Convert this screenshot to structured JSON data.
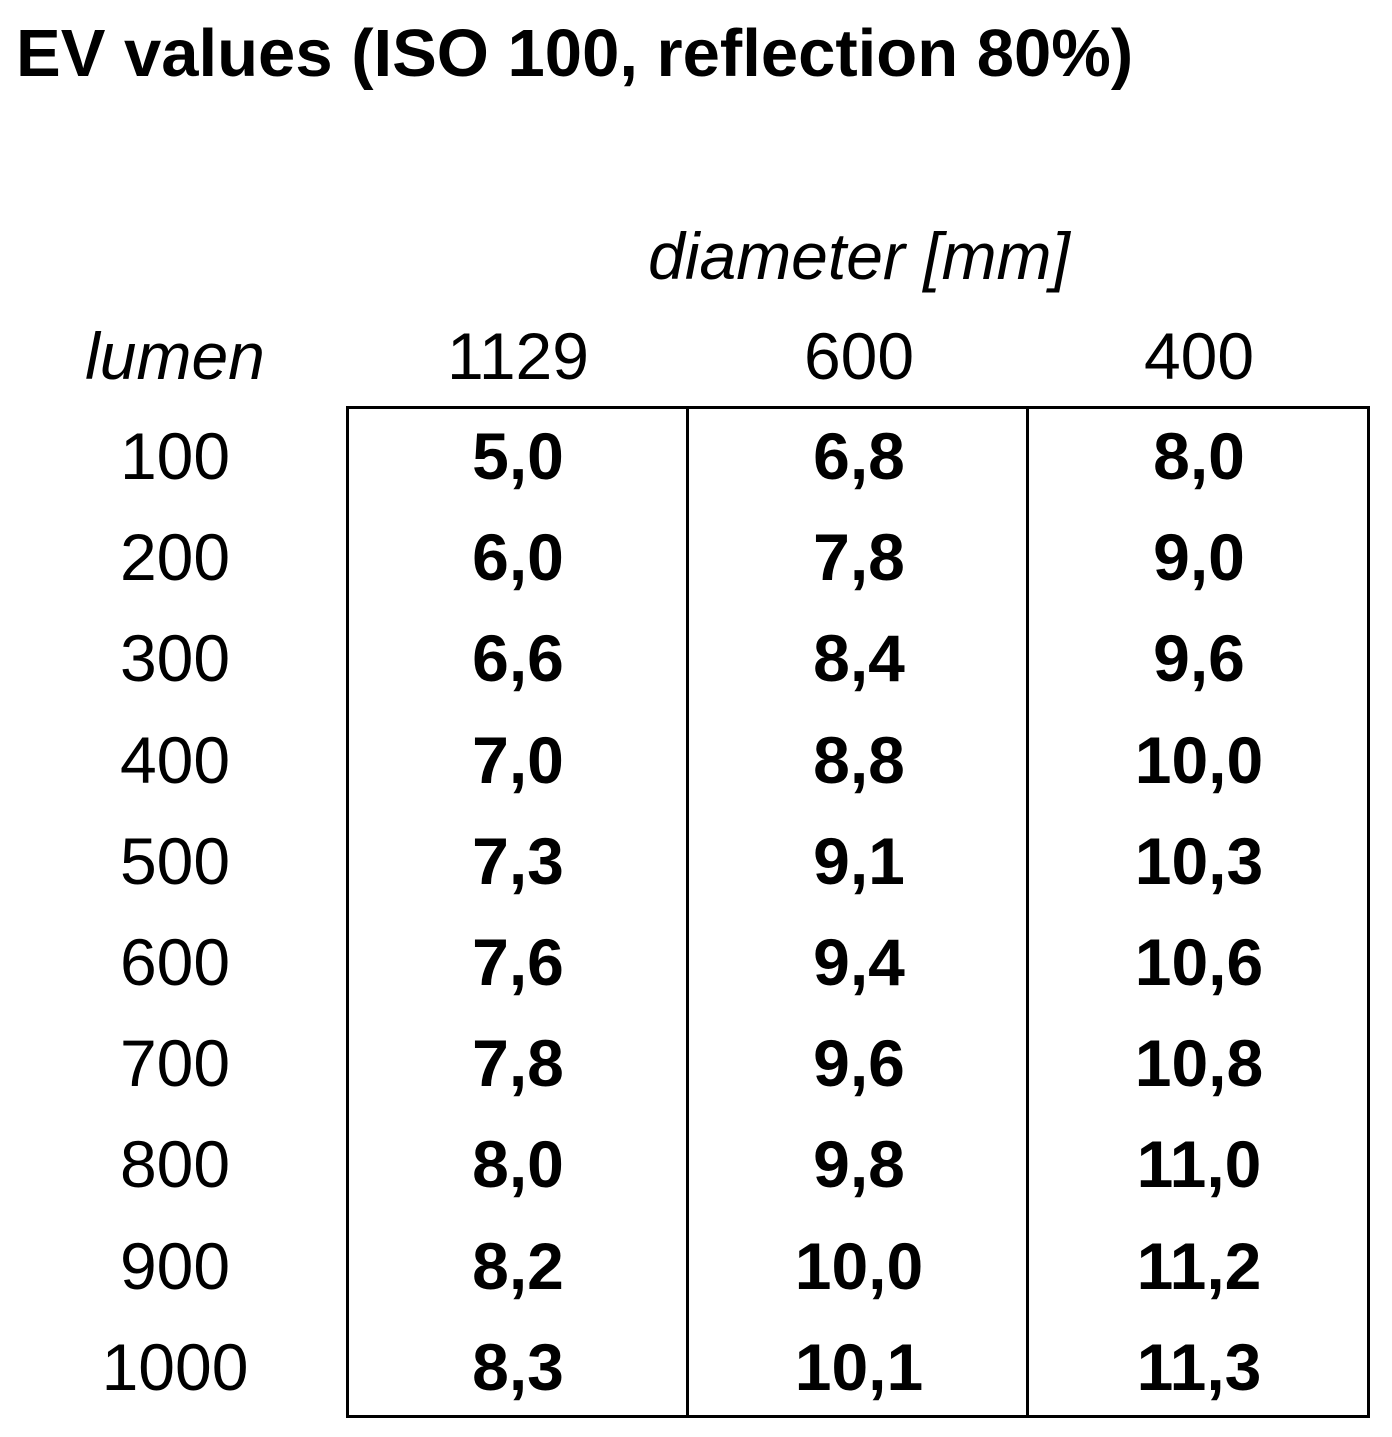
{
  "chart_data": {
    "type": "table",
    "title": "EV values (ISO 100, reflection 80%)",
    "column_group_label": "diameter [mm]",
    "row_group_label": "lumen",
    "columns": [
      "1129",
      "600",
      "400"
    ],
    "rows": [
      {
        "label": "100",
        "values": [
          "5,0",
          "6,8",
          "8,0"
        ]
      },
      {
        "label": "200",
        "values": [
          "6,0",
          "7,8",
          "9,0"
        ]
      },
      {
        "label": "300",
        "values": [
          "6,6",
          "8,4",
          "9,6"
        ]
      },
      {
        "label": "400",
        "values": [
          "7,0",
          "8,8",
          "10,0"
        ]
      },
      {
        "label": "500",
        "values": [
          "7,3",
          "9,1",
          "10,3"
        ]
      },
      {
        "label": "600",
        "values": [
          "7,6",
          "9,4",
          "10,6"
        ]
      },
      {
        "label": "700",
        "values": [
          "7,8",
          "9,6",
          "10,8"
        ]
      },
      {
        "label": "800",
        "values": [
          "8,0",
          "9,8",
          "11,0"
        ]
      },
      {
        "label": "900",
        "values": [
          "8,2",
          "10,0",
          "11,2"
        ]
      },
      {
        "label": "1000",
        "values": [
          "8,3",
          "10,1",
          "11,3"
        ]
      }
    ]
  }
}
